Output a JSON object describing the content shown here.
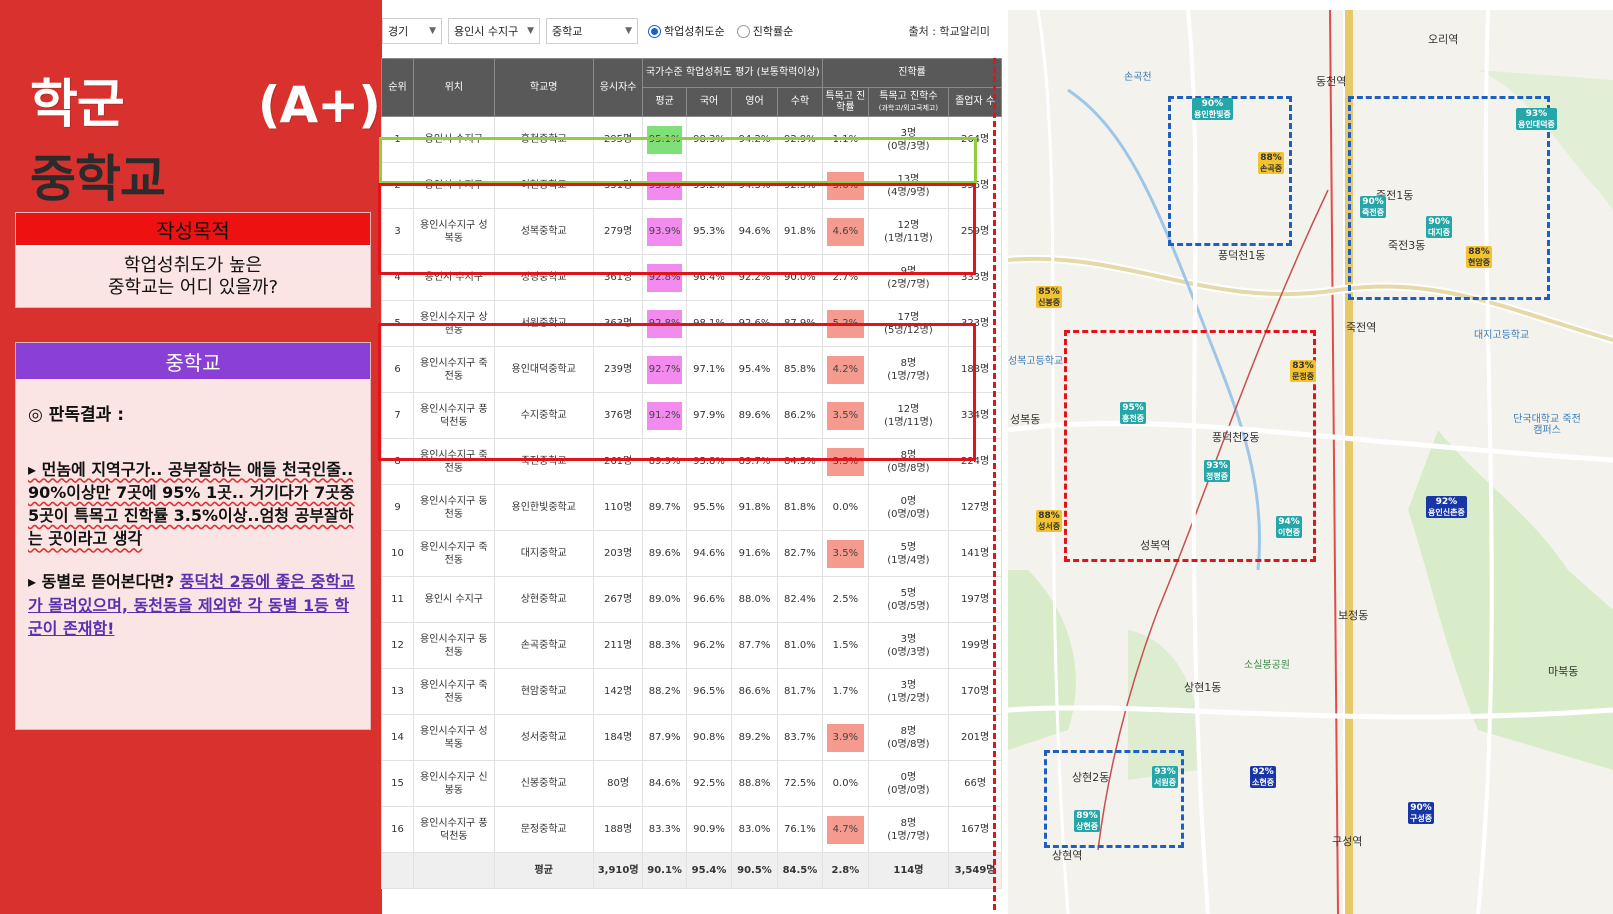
{
  "title": {
    "line1": "학군",
    "grade": "(A+)",
    "line2": "중학교"
  },
  "purpose": {
    "heading": "작성목적",
    "line1": "학업성취도가 높은",
    "line2": "중학교는 어디 있을까?"
  },
  "middle_school": {
    "heading": "중학교",
    "result_label": "◎ 판독결과 :",
    "p1": "▸ 먼놈에 지역구가.. 공부잘하는 애들 천국인줄.. 90%이상만 7곳에 95% 1곳.. 거기다가 7곳중 5곳이 특목고 진학률 3.5%이상..엄청 공부잘하는 곳이라고 생각",
    "p2_prefix": "▸ 동별로 뜯어본다면? ",
    "p2_link": "풍덕천 2동에 좋은 중학교가 몰려있으며, 동천동을 제외한 각 동별 1등 학군이 존재함!"
  },
  "filters": {
    "region": "경기",
    "district": "용인시 수지구",
    "level": "중학교",
    "radio1": "학업성취도순",
    "radio2": "진학률순",
    "source": "출처 : 학교알리미"
  },
  "table": {
    "headers": {
      "rank": "순위",
      "location": "위치",
      "school": "학교명",
      "applicants": "응시자수",
      "group_eval": "국가수준 학업성취도 평가 (보통학력이상)",
      "avg": "평균",
      "kor": "국어",
      "eng": "영어",
      "math": "수학",
      "group_adv": "진학률",
      "special_rate": "특목고 진학률",
      "special_count": "특목고 진학수",
      "special_count_sub": "(과학고/외고국제고)",
      "graduates": "졸업자 수"
    },
    "rows": [
      {
        "rank": "1",
        "location": "용인시 수지구",
        "school": "홍천중학교",
        "applicants": "295명",
        "avg": "95.1%",
        "kor": "98.3%",
        "eng": "94.2%",
        "math": "92.9%",
        "rate": "1.1%",
        "count": "3명",
        "count_sub": "(0명/3명)",
        "grads": "264명",
        "avg_hl": "green",
        "rate_hl": ""
      },
      {
        "rank": "2",
        "location": "용인시 수지구",
        "school": "이현중학교",
        "applicants": "351명",
        "avg": "93.9%",
        "kor": "95.2%",
        "eng": "94.3%",
        "math": "92.3%",
        "rate": "3.6%",
        "count": "13명",
        "count_sub": "(4명/9명)",
        "grads": "356명",
        "avg_hl": "pink",
        "rate_hl": "red"
      },
      {
        "rank": "3",
        "location": "용인시수지구 성복동",
        "school": "성복중학교",
        "applicants": "279명",
        "avg": "93.9%",
        "kor": "95.3%",
        "eng": "94.6%",
        "math": "91.8%",
        "rate": "4.6%",
        "count": "12명",
        "count_sub": "(1명/11명)",
        "grads": "259명",
        "avg_hl": "pink",
        "rate_hl": "red"
      },
      {
        "rank": "4",
        "location": "용인시 수지구",
        "school": "정평중학교",
        "applicants": "361명",
        "avg": "92.8%",
        "kor": "96.4%",
        "eng": "92.2%",
        "math": "90.0%",
        "rate": "2.7%",
        "count": "9명",
        "count_sub": "(2명/7명)",
        "grads": "333명",
        "avg_hl": "pink",
        "rate_hl": ""
      },
      {
        "rank": "5",
        "location": "용인시수지구 상현동",
        "school": "서원중학교",
        "applicants": "363명",
        "avg": "92.8%",
        "kor": "98.1%",
        "eng": "92.6%",
        "math": "87.9%",
        "rate": "5.2%",
        "count": "17명",
        "count_sub": "(5명/12명)",
        "grads": "323명",
        "avg_hl": "pink",
        "rate_hl": "red"
      },
      {
        "rank": "6",
        "location": "용인시수지구 죽전동",
        "school": "용인대덕중학교",
        "applicants": "239명",
        "avg": "92.7%",
        "kor": "97.1%",
        "eng": "95.4%",
        "math": "85.8%",
        "rate": "4.2%",
        "count": "8명",
        "count_sub": "(1명/7명)",
        "grads": "188명",
        "avg_hl": "pink",
        "rate_hl": "red"
      },
      {
        "rank": "7",
        "location": "용인시수지구 풍덕천동",
        "school": "수지중학교",
        "applicants": "376명",
        "avg": "91.2%",
        "kor": "97.9%",
        "eng": "89.6%",
        "math": "86.2%",
        "rate": "3.5%",
        "count": "12명",
        "count_sub": "(1명/11명)",
        "grads": "334명",
        "avg_hl": "pink",
        "rate_hl": "red"
      },
      {
        "rank": "8",
        "location": "용인시수지구 죽전동",
        "school": "죽전중학교",
        "applicants": "261명",
        "avg": "89.9%",
        "kor": "95.8%",
        "eng": "89.7%",
        "math": "84.3%",
        "rate": "3.5%",
        "count": "8명",
        "count_sub": "(0명/8명)",
        "grads": "224명",
        "avg_hl": "",
        "rate_hl": "red"
      },
      {
        "rank": "9",
        "location": "용인시수지구 동천동",
        "school": "용인한빛중학교",
        "applicants": "110명",
        "avg": "89.7%",
        "kor": "95.5%",
        "eng": "91.8%",
        "math": "81.8%",
        "rate": "0.0%",
        "count": "0명",
        "count_sub": "(0명/0명)",
        "grads": "127명",
        "avg_hl": "",
        "rate_hl": ""
      },
      {
        "rank": "10",
        "location": "용인시수지구 죽전동",
        "school": "대지중학교",
        "applicants": "203명",
        "avg": "89.6%",
        "kor": "94.6%",
        "eng": "91.6%",
        "math": "82.7%",
        "rate": "3.5%",
        "count": "5명",
        "count_sub": "(1명/4명)",
        "grads": "141명",
        "avg_hl": "",
        "rate_hl": "red"
      },
      {
        "rank": "11",
        "location": "용인시 수지구",
        "school": "상현중학교",
        "applicants": "267명",
        "avg": "89.0%",
        "kor": "96.6%",
        "eng": "88.0%",
        "math": "82.4%",
        "rate": "2.5%",
        "count": "5명",
        "count_sub": "(0명/5명)",
        "grads": "197명",
        "avg_hl": "",
        "rate_hl": ""
      },
      {
        "rank": "12",
        "location": "용인시수지구 동천동",
        "school": "손곡중학교",
        "applicants": "211명",
        "avg": "88.3%",
        "kor": "96.2%",
        "eng": "87.7%",
        "math": "81.0%",
        "rate": "1.5%",
        "count": "3명",
        "count_sub": "(0명/3명)",
        "grads": "199명",
        "avg_hl": "",
        "rate_hl": ""
      },
      {
        "rank": "13",
        "location": "용인시수지구 죽전동",
        "school": "현암중학교",
        "applicants": "142명",
        "avg": "88.2%",
        "kor": "96.5%",
        "eng": "86.6%",
        "math": "81.7%",
        "rate": "1.7%",
        "count": "3명",
        "count_sub": "(1명/2명)",
        "grads": "170명",
        "avg_hl": "",
        "rate_hl": ""
      },
      {
        "rank": "14",
        "location": "용인시수지구 성복동",
        "school": "성서중학교",
        "applicants": "184명",
        "avg": "87.9%",
        "kor": "90.8%",
        "eng": "89.2%",
        "math": "83.7%",
        "rate": "3.9%",
        "count": "8명",
        "count_sub": "(0명/8명)",
        "grads": "201명",
        "avg_hl": "",
        "rate_hl": "red"
      },
      {
        "rank": "15",
        "location": "용인시수지구 신봉동",
        "school": "신봉중학교",
        "applicants": "80명",
        "avg": "84.6%",
        "kor": "92.5%",
        "eng": "88.8%",
        "math": "72.5%",
        "rate": "0.0%",
        "count": "0명",
        "count_sub": "(0명/0명)",
        "grads": "66명",
        "avg_hl": "",
        "rate_hl": ""
      },
      {
        "rank": "16",
        "location": "용인시수지구 풍덕천동",
        "school": "문정중학교",
        "applicants": "188명",
        "avg": "83.3%",
        "kor": "90.9%",
        "eng": "83.0%",
        "math": "76.1%",
        "rate": "4.7%",
        "count": "8명",
        "count_sub": "(1명/7명)",
        "grads": "167명",
        "avg_hl": "",
        "rate_hl": "red"
      }
    ],
    "avg_row": {
      "label": "평균",
      "applicants": "3,910명",
      "avg": "90.1%",
      "kor": "95.4%",
      "eng": "90.5%",
      "math": "84.5%",
      "rate": "2.8%",
      "count": "114명",
      "grads": "3,549명"
    }
  },
  "map": {
    "labels": [
      {
        "text": "오리역",
        "cls": "dark"
      },
      {
        "text": "동천역",
        "cls": "dark"
      },
      {
        "text": "손곡천",
        "cls": "blue"
      },
      {
        "text": "죽전1동",
        "cls": "dark"
      },
      {
        "text": "죽전3동",
        "cls": "dark"
      },
      {
        "text": "죽전역",
        "cls": "dark"
      },
      {
        "text": "풍덕천1동",
        "cls": "dark"
      },
      {
        "text": "풍덕천2동",
        "cls": "dark"
      },
      {
        "text": "성복동",
        "cls": "dark"
      },
      {
        "text": "성복역",
        "cls": "dark"
      },
      {
        "text": "보정동",
        "cls": "dark"
      },
      {
        "text": "상현2동",
        "cls": "dark"
      },
      {
        "text": "상현1동",
        "cls": "dark"
      },
      {
        "text": "상현역",
        "cls": "dark"
      },
      {
        "text": "구성역",
        "cls": "dark"
      },
      {
        "text": "소실봉공원",
        "cls": "green"
      },
      {
        "text": "단국대학교 죽전캠퍼스",
        "cls": "blue"
      },
      {
        "text": "대지고등학교",
        "cls": "blue"
      },
      {
        "text": "성복고등학교",
        "cls": "blue"
      },
      {
        "text": "마북동",
        "cls": "dark"
      }
    ],
    "pins": [
      {
        "pct": "90%",
        "name": "용인한빛중",
        "color": "teal"
      },
      {
        "pct": "88%",
        "name": "손곡중",
        "color": "yellow"
      },
      {
        "pct": "93%",
        "name": "용인대덕중",
        "color": "teal"
      },
      {
        "pct": "90%",
        "name": "죽전중",
        "color": "teal"
      },
      {
        "pct": "90%",
        "name": "대지중",
        "color": "teal"
      },
      {
        "pct": "88%",
        "name": "현암중",
        "color": "yellow"
      },
      {
        "pct": "85%",
        "name": "신봉중",
        "color": "yellow"
      },
      {
        "pct": "83%",
        "name": "문정중",
        "color": "yellow"
      },
      {
        "pct": "95%",
        "name": "홍천중",
        "color": "teal"
      },
      {
        "pct": "93%",
        "name": "정평중",
        "color": "teal"
      },
      {
        "pct": "94%",
        "name": "이현중",
        "color": "teal"
      },
      {
        "pct": "88%",
        "name": "성서중",
        "color": "yellow"
      },
      {
        "pct": "92%",
        "name": "용인신촌중",
        "color": "navy"
      },
      {
        "pct": "93%",
        "name": "서원중",
        "color": "teal"
      },
      {
        "pct": "89%",
        "name": "상현중",
        "color": "teal"
      },
      {
        "pct": "92%",
        "name": "소현중",
        "color": "navy"
      },
      {
        "pct": "90%",
        "name": "구성중",
        "color": "navy"
      }
    ]
  }
}
